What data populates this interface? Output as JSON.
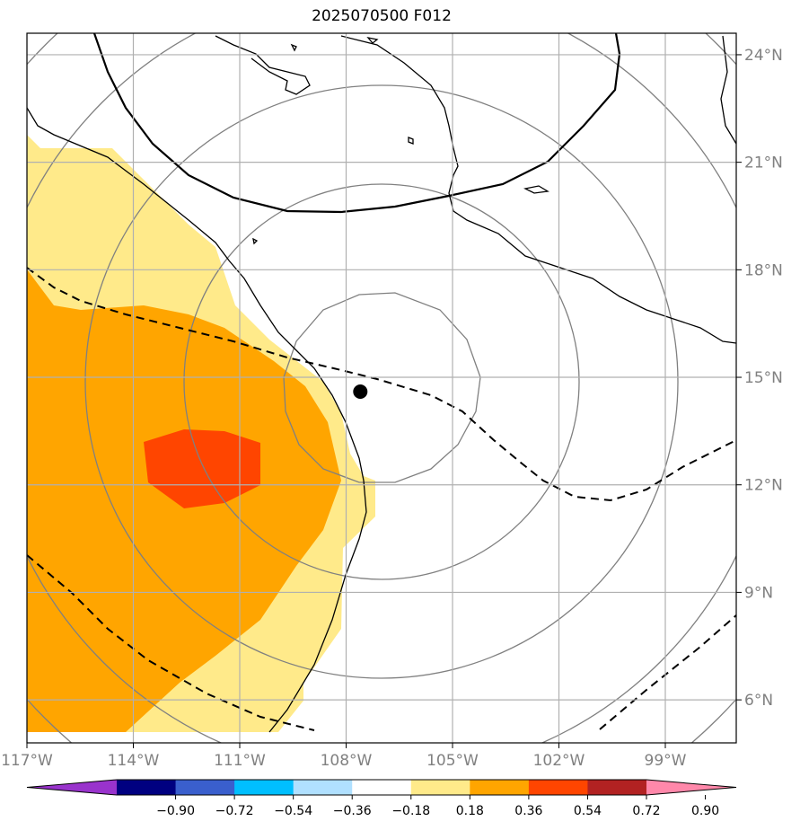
{
  "title": "2025070500 F012",
  "map": {
    "lon_range": [
      -117.0,
      -97.0
    ],
    "lat_range": [
      4.8,
      24.6
    ],
    "lon_ticks": [
      {
        "value": -117,
        "label": "117°W"
      },
      {
        "value": -114,
        "label": "114°W"
      },
      {
        "value": -111,
        "label": "111°W"
      },
      {
        "value": -108,
        "label": "108°W"
      },
      {
        "value": -105,
        "label": "105°W"
      },
      {
        "value": -102,
        "label": "102°W"
      },
      {
        "value": -99,
        "label": "99°W"
      }
    ],
    "lat_ticks": [
      {
        "value": 6,
        "label": "6°N"
      },
      {
        "value": 9,
        "label": "9°N"
      },
      {
        "value": 12,
        "label": "12°N"
      },
      {
        "value": 15,
        "label": "15°N"
      },
      {
        "value": 18,
        "label": "18°N"
      },
      {
        "value": 21,
        "label": "21°N"
      },
      {
        "value": 24,
        "label": "24°N"
      }
    ],
    "storm_center": {
      "lon": -107.6,
      "lat": 14.6
    },
    "grid_color": "#b0b0b0",
    "tick_label_color": "#808080"
  },
  "colorbar": {
    "colors": [
      "#9933cc",
      "#000080",
      "#3a5fcd",
      "#00bfff",
      "#b0e0ff",
      "#ffffff",
      "#ffea8a",
      "#ffa500",
      "#ff4500",
      "#b22222",
      "#ff88aa"
    ],
    "tick_labels": [
      "−0.90",
      "−0.72",
      "−0.54",
      "−0.36",
      "−0.18",
      "0.18",
      "0.36",
      "0.54",
      "0.72",
      "0.90"
    ]
  }
}
